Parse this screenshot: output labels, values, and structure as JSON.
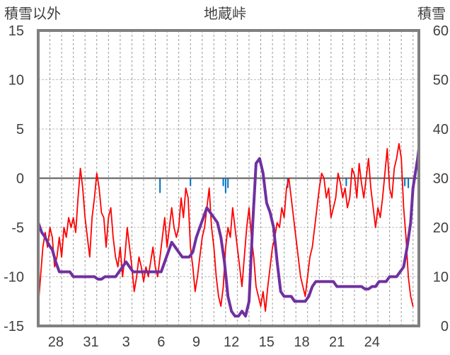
{
  "chart_data": {
    "type": "line",
    "title": "地蔵峠",
    "ylabel_left": "積雪以外",
    "ylabel_right": "積雪",
    "left_axis": {
      "min": -15,
      "max": 15,
      "ticks": [
        "15",
        "10",
        "5",
        "0",
        "-5",
        "-10",
        "-15"
      ]
    },
    "right_axis": {
      "min": 0,
      "max": 60,
      "ticks": [
        "60",
        "50",
        "40",
        "30",
        "20",
        "10",
        "0"
      ]
    },
    "x_axis": {
      "min": 0,
      "max": 32.5,
      "tick_labels": [
        "28",
        "31",
        "3",
        "6",
        "9",
        "12",
        "15",
        "18",
        "21",
        "24"
      ],
      "tick_positions": [
        1.5,
        4.5,
        7.5,
        10.5,
        13.5,
        16.5,
        19.5,
        22.5,
        25.5,
        28.5
      ]
    },
    "grid": true,
    "colors": {
      "temperature": "#ff0000",
      "snow_depth": "#7030a0",
      "precipitation": "#0070c0",
      "frame": "#808080",
      "zero_line": "#595959"
    },
    "series": [
      {
        "axis": "left",
        "color": "#ff0000",
        "points": [
          [
            0,
            -13
          ],
          [
            0.2,
            -10
          ],
          [
            0.4,
            -7
          ],
          [
            0.6,
            -5.5
          ],
          [
            0.8,
            -7
          ],
          [
            1,
            -5
          ],
          [
            1.2,
            -6
          ],
          [
            1.4,
            -9
          ],
          [
            1.6,
            -8
          ],
          [
            1.8,
            -6
          ],
          [
            2,
            -8
          ],
          [
            2.2,
            -5
          ],
          [
            2.4,
            -6
          ],
          [
            2.6,
            -4
          ],
          [
            2.8,
            -5
          ],
          [
            3,
            -4
          ],
          [
            3.2,
            -5.5
          ],
          [
            3.4,
            -2
          ],
          [
            3.6,
            1
          ],
          [
            3.8,
            -1
          ],
          [
            4,
            -4
          ],
          [
            4.2,
            -6
          ],
          [
            4.4,
            -8
          ],
          [
            4.6,
            -4
          ],
          [
            4.8,
            -2
          ],
          [
            5,
            0.5
          ],
          [
            5.2,
            -1
          ],
          [
            5.4,
            -3.5
          ],
          [
            5.6,
            -4
          ],
          [
            5.8,
            -7
          ],
          [
            6,
            -4
          ],
          [
            6.2,
            -3
          ],
          [
            6.4,
            -6
          ],
          [
            6.6,
            -8
          ],
          [
            6.8,
            -9
          ],
          [
            7,
            -7
          ],
          [
            7.2,
            -10
          ],
          [
            7.4,
            -8
          ],
          [
            7.6,
            -5
          ],
          [
            7.8,
            -7
          ],
          [
            8,
            -9
          ],
          [
            8.2,
            -11.5
          ],
          [
            8.4,
            -10
          ],
          [
            8.6,
            -8
          ],
          [
            8.8,
            -9
          ],
          [
            9,
            -10.5
          ],
          [
            9.2,
            -9
          ],
          [
            9.4,
            -10
          ],
          [
            9.6,
            -8.5
          ],
          [
            9.8,
            -7
          ],
          [
            10,
            -9
          ],
          [
            10.2,
            -10
          ],
          [
            10.4,
            -8
          ],
          [
            10.6,
            -6
          ],
          [
            10.8,
            -4
          ],
          [
            11,
            -7
          ],
          [
            11.2,
            -5
          ],
          [
            11.4,
            -3
          ],
          [
            11.6,
            -5
          ],
          [
            11.8,
            -6
          ],
          [
            12,
            -5
          ],
          [
            12.2,
            -2
          ],
          [
            12.4,
            -4
          ],
          [
            12.6,
            -1
          ],
          [
            12.8,
            -2
          ],
          [
            13,
            -7
          ],
          [
            13.2,
            -9
          ],
          [
            13.4,
            -11.5
          ],
          [
            13.6,
            -10
          ],
          [
            13.8,
            -8
          ],
          [
            14,
            -6
          ],
          [
            14.2,
            -5
          ],
          [
            14.4,
            -3
          ],
          [
            14.6,
            -1
          ],
          [
            14.8,
            -5
          ],
          [
            15,
            -7
          ],
          [
            15.2,
            -10
          ],
          [
            15.4,
            -12
          ],
          [
            15.6,
            -13
          ],
          [
            15.8,
            -11
          ],
          [
            16,
            -7
          ],
          [
            16.2,
            -5
          ],
          [
            16.4,
            -6
          ],
          [
            16.6,
            -3
          ],
          [
            16.8,
            -5
          ],
          [
            17,
            -7
          ],
          [
            17.2,
            -9
          ],
          [
            17.4,
            -11
          ],
          [
            17.6,
            -8
          ],
          [
            17.8,
            -5
          ],
          [
            18,
            -3
          ],
          [
            18.2,
            -6
          ],
          [
            18.4,
            -8
          ],
          [
            18.6,
            -11
          ],
          [
            18.8,
            -12
          ],
          [
            19,
            -13
          ],
          [
            19.2,
            -11.5
          ],
          [
            19.4,
            -13.5
          ],
          [
            19.6,
            -11
          ],
          [
            19.8,
            -9
          ],
          [
            20,
            -7
          ],
          [
            20.2,
            -6
          ],
          [
            20.4,
            -4.5
          ],
          [
            20.6,
            -5
          ],
          [
            20.8,
            -3
          ],
          [
            21,
            -4
          ],
          [
            21.2,
            -1
          ],
          [
            21.4,
            0
          ],
          [
            21.6,
            -2
          ],
          [
            21.8,
            -4
          ],
          [
            22,
            -6
          ],
          [
            22.2,
            -8
          ],
          [
            22.4,
            -10
          ],
          [
            22.6,
            -11
          ],
          [
            22.8,
            -12
          ],
          [
            23,
            -10
          ],
          [
            23.2,
            -8
          ],
          [
            23.4,
            -7
          ],
          [
            23.6,
            -5
          ],
          [
            23.8,
            -3
          ],
          [
            24,
            -1
          ],
          [
            24.2,
            0.5
          ],
          [
            24.4,
            0
          ],
          [
            24.6,
            -2
          ],
          [
            24.8,
            -1
          ],
          [
            25,
            -4
          ],
          [
            25.2,
            -3
          ],
          [
            25.4,
            -2
          ],
          [
            25.6,
            0.5
          ],
          [
            25.8,
            -0.5
          ],
          [
            26,
            -2
          ],
          [
            26.2,
            -1
          ],
          [
            26.4,
            -3
          ],
          [
            26.6,
            -2
          ],
          [
            26.8,
            1
          ],
          [
            27,
            0.3
          ],
          [
            27.2,
            -2
          ],
          [
            27.4,
            1.5
          ],
          [
            27.6,
            -0.5
          ],
          [
            27.8,
            -2
          ],
          [
            28,
            0
          ],
          [
            28.2,
            2
          ],
          [
            28.4,
            -1
          ],
          [
            28.6,
            -3
          ],
          [
            28.8,
            -5
          ],
          [
            29,
            -3
          ],
          [
            29.2,
            -4
          ],
          [
            29.4,
            -2
          ],
          [
            29.6,
            0.5
          ],
          [
            29.8,
            3
          ],
          [
            30,
            -1
          ],
          [
            30.2,
            -2
          ],
          [
            30.4,
            1
          ],
          [
            30.6,
            2
          ],
          [
            30.8,
            3.5
          ],
          [
            31,
            2
          ],
          [
            31.2,
            -3
          ],
          [
            31.4,
            -6
          ],
          [
            31.6,
            -10
          ],
          [
            31.8,
            -12
          ],
          [
            32,
            -13
          ]
        ]
      },
      {
        "axis": "right",
        "color": "#7030a0",
        "points": [
          [
            0,
            21
          ],
          [
            0.3,
            19
          ],
          [
            0.6,
            18
          ],
          [
            0.9,
            16.5
          ],
          [
            1.2,
            15.5
          ],
          [
            1.5,
            13
          ],
          [
            1.8,
            11
          ],
          [
            2.1,
            11
          ],
          [
            2.4,
            11
          ],
          [
            2.7,
            11
          ],
          [
            3,
            10
          ],
          [
            3.3,
            10
          ],
          [
            3.6,
            10
          ],
          [
            3.9,
            10
          ],
          [
            4.2,
            10
          ],
          [
            4.5,
            10
          ],
          [
            4.8,
            10
          ],
          [
            5.1,
            9.5
          ],
          [
            5.4,
            9.5
          ],
          [
            5.7,
            10
          ],
          [
            6,
            10
          ],
          [
            6.3,
            10
          ],
          [
            6.6,
            10
          ],
          [
            6.9,
            11
          ],
          [
            7.2,
            12
          ],
          [
            7.5,
            13
          ],
          [
            7.8,
            12
          ],
          [
            8.1,
            11
          ],
          [
            8.4,
            11
          ],
          [
            8.7,
            11
          ],
          [
            9,
            11
          ],
          [
            9.3,
            11
          ],
          [
            9.6,
            11
          ],
          [
            9.9,
            11
          ],
          [
            10.2,
            11
          ],
          [
            10.5,
            11
          ],
          [
            10.8,
            13
          ],
          [
            11.1,
            15
          ],
          [
            11.4,
            17
          ],
          [
            11.7,
            16
          ],
          [
            12,
            15
          ],
          [
            12.3,
            14
          ],
          [
            12.6,
            14
          ],
          [
            12.9,
            14
          ],
          [
            13.2,
            15
          ],
          [
            13.5,
            18
          ],
          [
            13.8,
            20
          ],
          [
            14.1,
            22
          ],
          [
            14.4,
            24
          ],
          [
            14.7,
            23
          ],
          [
            15,
            22
          ],
          [
            15.3,
            21
          ],
          [
            15.6,
            18
          ],
          [
            15.9,
            13
          ],
          [
            16.2,
            6
          ],
          [
            16.5,
            3
          ],
          [
            16.8,
            2
          ],
          [
            17.1,
            2
          ],
          [
            17.4,
            3
          ],
          [
            17.7,
            2
          ],
          [
            18,
            5
          ],
          [
            18.3,
            20
          ],
          [
            18.6,
            33
          ],
          [
            18.9,
            34
          ],
          [
            19.2,
            31
          ],
          [
            19.5,
            25
          ],
          [
            19.8,
            23
          ],
          [
            20.1,
            20
          ],
          [
            20.4,
            13
          ],
          [
            20.7,
            7
          ],
          [
            21,
            6
          ],
          [
            21.3,
            6
          ],
          [
            21.6,
            6
          ],
          [
            21.9,
            5
          ],
          [
            22.2,
            5
          ],
          [
            22.5,
            5
          ],
          [
            22.8,
            5
          ],
          [
            23.1,
            6
          ],
          [
            23.4,
            8
          ],
          [
            23.7,
            9
          ],
          [
            24,
            9
          ],
          [
            24.3,
            9
          ],
          [
            24.6,
            9
          ],
          [
            24.9,
            9
          ],
          [
            25.2,
            9
          ],
          [
            25.5,
            8
          ],
          [
            25.8,
            8
          ],
          [
            26.1,
            8
          ],
          [
            26.4,
            8
          ],
          [
            26.7,
            8
          ],
          [
            27,
            8
          ],
          [
            27.3,
            8
          ],
          [
            27.6,
            8
          ],
          [
            27.9,
            7.5
          ],
          [
            28.2,
            7.5
          ],
          [
            28.5,
            8
          ],
          [
            28.8,
            8
          ],
          [
            29.1,
            9
          ],
          [
            29.4,
            9
          ],
          [
            29.7,
            9
          ],
          [
            30,
            10
          ],
          [
            30.3,
            10
          ],
          [
            30.6,
            10
          ],
          [
            30.9,
            11
          ],
          [
            31.2,
            12
          ],
          [
            31.5,
            16
          ],
          [
            31.8,
            21
          ],
          [
            32,
            28
          ],
          [
            32.2,
            31
          ],
          [
            32.4,
            34
          ],
          [
            32.5,
            36
          ]
        ]
      },
      {
        "axis": "left",
        "color": "#0070c0",
        "type": "bar",
        "x": [
          10.4,
          13.0,
          15.8,
          16.0,
          16.2,
          21.3,
          26.3,
          31.3,
          31.6
        ],
        "values": [
          -1.5,
          -0.8,
          -0.8,
          -1.5,
          -1.0,
          -1.0,
          -0.8,
          -0.8,
          -1.0
        ]
      }
    ]
  }
}
